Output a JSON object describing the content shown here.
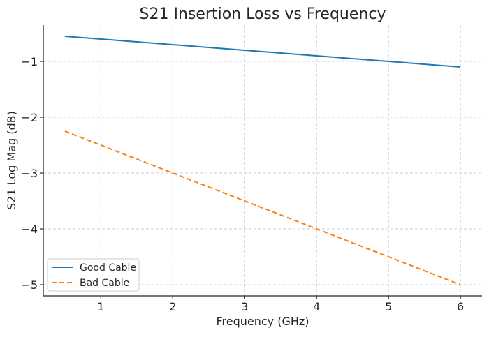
{
  "chart_data": {
    "type": "line",
    "title": "S21 Insertion Loss vs Frequency",
    "xlabel": "Frequency (GHz)",
    "ylabel": "S21 Log Mag (dB)",
    "xlim": [
      0.2,
      6.3
    ],
    "ylim": [
      -5.2,
      -0.35
    ],
    "xticks": [
      1,
      2,
      3,
      4,
      5,
      6
    ],
    "xtick_labels": [
      "1",
      "2",
      "3",
      "4",
      "5",
      "6"
    ],
    "yticks": [
      -1,
      -2,
      -3,
      -4,
      -5
    ],
    "ytick_labels": [
      "−1",
      "−2",
      "−3",
      "−4",
      "−5"
    ],
    "grid": true,
    "legend": "bottom-left",
    "series": [
      {
        "name": "Good Cable",
        "color": "#1f77b4",
        "dash": "solid",
        "x": [
          0.5,
          6.0
        ],
        "y": [
          -0.55,
          -1.1
        ]
      },
      {
        "name": "Bad Cable",
        "color": "#ff7f0e",
        "dash": "dashed",
        "x": [
          0.5,
          6.0
        ],
        "y": [
          -2.25,
          -5.0
        ]
      }
    ]
  }
}
